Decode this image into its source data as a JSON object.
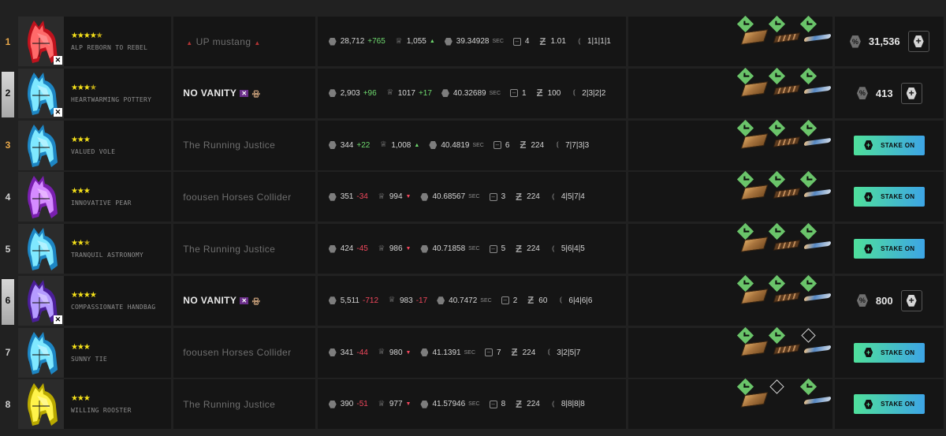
{
  "colors": {
    "accent_green": "#6ed86e",
    "accent_red": "#f0475c",
    "stake_from": "#4fe09b",
    "stake_to": "#3da5e6"
  },
  "rows": [
    {
      "pos": "1",
      "pos_style": "gold",
      "stars": "★★★★",
      "half_star": "★",
      "horse_color": "red",
      "horse_name": "ALP REBORN TO REBEL",
      "stable": "UP mustang",
      "stable_style": "prefix",
      "rating": "28,712",
      "rating_change": "+765",
      "rating_dir": "up",
      "fans": "1,055",
      "fans_change": "▲",
      "fans_dir": "up-small",
      "time": "39.34928",
      "time_unit": "SEC",
      "gate": "4",
      "distance_factor": "1.01",
      "form": "1|1|1|1",
      "gear": [
        "check",
        "check",
        "check"
      ],
      "action": "balance",
      "balance": "31,536"
    },
    {
      "pos": "2",
      "pos_style": "bar",
      "stars": "★★★",
      "half_star": "★",
      "horse_color": "cyan",
      "horse_name": "HEARTWARMING POTTERY",
      "stable": "NO VANITY",
      "stable_style": "bright",
      "stable_tag": "✕",
      "rating": "2,903",
      "rating_change": "+96",
      "rating_dir": "up",
      "fans": "1017",
      "fans_change": "+17",
      "fans_dir": "up",
      "time": "40.32689",
      "time_unit": "SEC",
      "gate": "1",
      "distance_factor": "100",
      "form": "2|3|2|2",
      "gear": [
        "check",
        "check",
        "check"
      ],
      "action": "balance",
      "balance": "413"
    },
    {
      "pos": "3",
      "pos_style": "gold",
      "stars": "★★★",
      "half_star": "",
      "horse_color": "cyan",
      "horse_name": "VALUED VOLE",
      "stable": "The Running Justice",
      "stable_style": "dim",
      "rating": "344",
      "rating_change": "+22",
      "rating_dir": "up",
      "fans": "1,008",
      "fans_change": "▲",
      "fans_dir": "up-small",
      "time": "40.4819",
      "time_unit": "SEC",
      "gate": "6",
      "distance_factor": "224",
      "form": "7|7|3|3",
      "gear": [
        "check",
        "check",
        "check"
      ],
      "action": "stake",
      "stake_label": "STAKE ON"
    },
    {
      "pos": "4",
      "pos_style": "plain",
      "stars": "★★★",
      "half_star": "",
      "horse_color": "purple",
      "horse_name": "INNOVATIVE PEAR",
      "stable": "foousen Horses Collider",
      "stable_style": "dim",
      "rating": "351",
      "rating_change": "-34",
      "rating_dir": "down",
      "fans": "994",
      "fans_change": "▼",
      "fans_dir": "down-small",
      "time": "40.68567",
      "time_unit": "SEC",
      "gate": "3",
      "distance_factor": "224",
      "form": "4|5|7|4",
      "gear": [
        "check",
        "check",
        "check"
      ],
      "action": "stake",
      "stake_label": "STAKE ON"
    },
    {
      "pos": "5",
      "pos_style": "plain",
      "stars": "★★",
      "half_star": "★",
      "horse_color": "cyan",
      "horse_name": "TRANQUIL ASTRONOMY",
      "stable": "The Running Justice",
      "stable_style": "dim",
      "rating": "424",
      "rating_change": "-45",
      "rating_dir": "down",
      "fans": "986",
      "fans_change": "▼",
      "fans_dir": "down-small",
      "time": "40.71858",
      "time_unit": "SEC",
      "gate": "5",
      "distance_factor": "224",
      "form": "5|6|4|5",
      "gear": [
        "check",
        "check",
        "check"
      ],
      "action": "stake",
      "stake_label": "STAKE ON"
    },
    {
      "pos": "6",
      "pos_style": "bar",
      "stars": "★★★★",
      "half_star": "",
      "horse_color": "violet",
      "horse_name": "COMPASSIONATE HANDBAG",
      "stable": "NO VANITY",
      "stable_style": "bright",
      "stable_tag": "✕",
      "rating": "5,511",
      "rating_change": "-712",
      "rating_dir": "down",
      "fans": "983",
      "fans_change": "-17",
      "fans_dir": "down",
      "time": "40.7472",
      "time_unit": "SEC",
      "gate": "2",
      "distance_factor": "60",
      "form": "6|4|6|6",
      "gear": [
        "check",
        "check",
        "check"
      ],
      "action": "balance",
      "balance": "800"
    },
    {
      "pos": "7",
      "pos_style": "plain",
      "stars": "★★★",
      "half_star": "",
      "horse_color": "cyan",
      "horse_name": "SUNNY TIE",
      "stable": "foousen Horses Collider",
      "stable_style": "dim",
      "rating": "341",
      "rating_change": "-44",
      "rating_dir": "down",
      "fans": "980",
      "fans_change": "▼",
      "fans_dir": "down-small",
      "time": "41.1391",
      "time_unit": "SEC",
      "gate": "7",
      "distance_factor": "224",
      "form": "3|2|5|7",
      "gear": [
        "check",
        "check",
        "empty"
      ],
      "action": "stake",
      "stake_label": "STAKE ON"
    },
    {
      "pos": "8",
      "pos_style": "plain",
      "stars": "★★★",
      "half_star": "",
      "horse_color": "yellow",
      "horse_name": "WILLING ROOSTER",
      "stable": "The Running Justice",
      "stable_style": "dim",
      "rating": "390",
      "rating_change": "-51",
      "rating_dir": "down",
      "fans": "977",
      "fans_change": "▼",
      "fans_dir": "down-small",
      "time": "41.57946",
      "time_unit": "SEC",
      "gate": "8",
      "distance_factor": "224",
      "form": "8|8|8|8",
      "gear": [
        "check",
        "empty",
        "check"
      ],
      "action": "stake",
      "stake_label": "STAKE ON"
    }
  ]
}
